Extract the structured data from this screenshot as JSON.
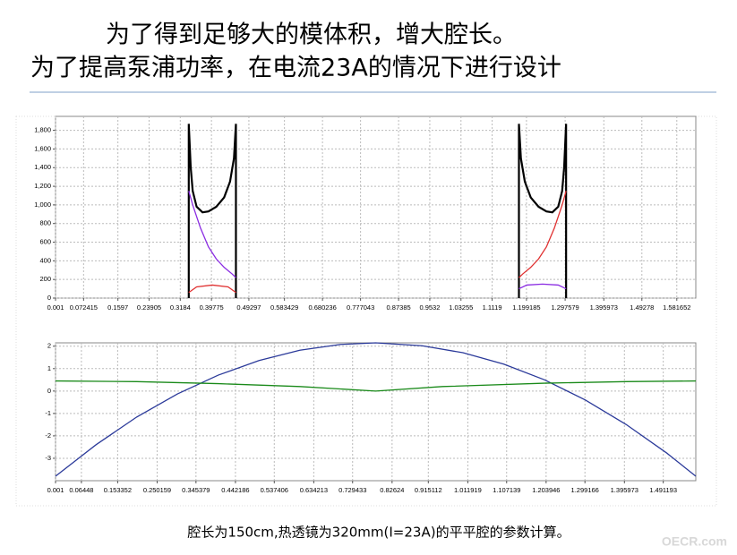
{
  "header": {
    "line1": "为了得到足够大的模体积，增大腔长。",
    "line2": "为了提高泵浦功率，在电流23A的情况下进行设计"
  },
  "caption": "腔长为150cm,热透镜为320mm(I=23A)的平平腔的参数计算。",
  "watermark": "OECR.com",
  "chart_data": [
    {
      "type": "line",
      "xlim": [
        0.001,
        1.63
      ],
      "ylim": [
        0,
        1950
      ],
      "grid": true,
      "xticks": [
        0.001,
        0.072415,
        0.1597,
        0.23905,
        0.3184,
        0.39775,
        0.49297,
        0.583429,
        0.680236,
        0.777043,
        0.87385,
        0.9532,
        1.03255,
        1.1119,
        1.199185,
        1.297579,
        1.395973,
        1.49278,
        1.581652
      ],
      "yticks": [
        0,
        200,
        400,
        600,
        800,
        {
          "value": 1000,
          "label": "1,000"
        },
        {
          "value": 1200,
          "label": "1,200"
        },
        {
          "value": 1400,
          "label": "1,400"
        },
        {
          "value": 1600,
          "label": "1,600"
        },
        {
          "value": 1800,
          "label": "1,800"
        }
      ],
      "series": [
        {
          "color": "#000000",
          "x": [
            0.34,
            0.34,
            0.345,
            0.35,
            0.36,
            0.375,
            0.39,
            0.41,
            0.43,
            0.445,
            0.455,
            0.46,
            0.46,
            null,
            1.18,
            1.18,
            1.185,
            1.195,
            1.21,
            1.23,
            1.25,
            1.265,
            1.28,
            1.29,
            1.295,
            1.3,
            1.3
          ],
          "values": [
            0,
            1870,
            1400,
            1150,
            980,
            920,
            930,
            980,
            1080,
            1250,
            1500,
            1870,
            0,
            null,
            0,
            1870,
            1500,
            1250,
            1080,
            980,
            930,
            920,
            980,
            1150,
            1400,
            1870,
            0
          ]
        },
        {
          "color": "#8a2be2",
          "x": [
            0.34,
            0.35,
            0.37,
            0.39,
            0.41,
            0.43,
            0.45,
            0.46,
            null,
            1.18,
            1.2,
            1.24,
            1.28,
            1.3
          ],
          "values": [
            1150,
            1000,
            750,
            550,
            420,
            330,
            260,
            220,
            null,
            100,
            140,
            150,
            140,
            100
          ]
        },
        {
          "color": "#e03030",
          "x": [
            0.34,
            0.36,
            0.4,
            0.44,
            0.46,
            null,
            1.18,
            1.19,
            1.21,
            1.23,
            1.25,
            1.27,
            1.29,
            1.3
          ],
          "values": [
            60,
            120,
            140,
            120,
            60,
            null,
            220,
            260,
            330,
            420,
            550,
            750,
            1000,
            1150
          ]
        }
      ]
    },
    {
      "type": "line",
      "xlim": [
        0.001,
        1.571
      ],
      "ylim": [
        -4,
        2.15
      ],
      "grid": true,
      "xticks": [
        0.001,
        0.06448,
        0.153352,
        0.250159,
        0.345379,
        0.442186,
        0.537406,
        0.634213,
        0.729433,
        0.82624,
        0.915112,
        1.011919,
        1.107139,
        1.203946,
        1.299166,
        1.395973,
        1.491193
      ],
      "yticks": [
        -3,
        -2,
        -1,
        0,
        1,
        2
      ],
      "series": [
        {
          "color": "#2b3a9a",
          "x": [
            0.001,
            0.1,
            0.2,
            0.3,
            0.4,
            0.5,
            0.6,
            0.7,
            0.786,
            0.9,
            1.0,
            1.1,
            1.2,
            1.3,
            1.4,
            1.5,
            1.571
          ],
          "values": [
            -3.8,
            -2.4,
            -1.16,
            -0.13,
            0.71,
            1.36,
            1.82,
            2.08,
            2.15,
            2.02,
            1.71,
            1.2,
            0.5,
            -0.4,
            -1.49,
            -2.77,
            -3.8
          ]
        },
        {
          "color": "#1a8a1a",
          "x": [
            0.001,
            0.2,
            0.4,
            0.6,
            0.786,
            0.95,
            1.2,
            1.4,
            1.571
          ],
          "values": [
            0.45,
            0.42,
            0.33,
            0.2,
            0,
            0.2,
            0.35,
            0.42,
            0.45
          ]
        }
      ]
    }
  ]
}
